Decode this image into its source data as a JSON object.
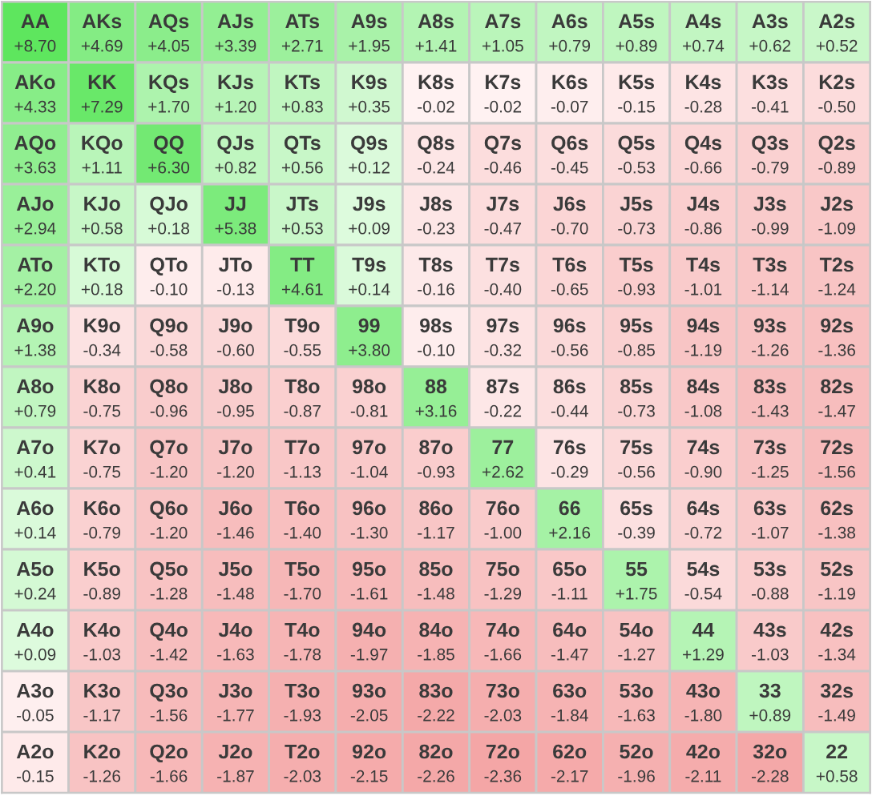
{
  "chart_data": {
    "type": "heatmap",
    "categories": [
      null,
      null,
      null,
      null,
      null,
      null,
      null,
      null,
      null,
      null,
      null,
      null,
      null
    ],
    "y_categories": [
      null,
      null,
      null,
      null,
      null,
      null,
      null,
      null,
      null,
      null,
      null,
      null,
      null
    ],
    "cells": [
      [
        8.7,
        4.69,
        4.05,
        3.39,
        2.71,
        1.95,
        1.41,
        1.05,
        0.79,
        0.89,
        0.74,
        0.62,
        0.52
      ],
      [
        4.33,
        7.29,
        1.7,
        1.2,
        0.83,
        0.35,
        -0.02,
        -0.02,
        -0.07,
        -0.15,
        -0.28,
        -0.41,
        -0.5
      ],
      [
        3.63,
        1.11,
        6.3,
        0.82,
        0.56,
        0.12,
        -0.24,
        -0.46,
        -0.45,
        -0.53,
        -0.66,
        -0.79,
        -0.89
      ],
      [
        2.94,
        0.58,
        0.18,
        5.38,
        0.53,
        0.09,
        -0.23,
        -0.47,
        -0.7,
        -0.73,
        -0.86,
        -0.99,
        -1.09
      ],
      [
        2.2,
        0.18,
        -0.1,
        -0.13,
        4.61,
        0.14,
        -0.16,
        -0.4,
        -0.65,
        -0.93,
        -1.01,
        -1.14,
        -1.24
      ],
      [
        1.38,
        -0.34,
        -0.58,
        -0.6,
        -0.55,
        3.8,
        -0.1,
        -0.32,
        -0.56,
        -0.85,
        -1.19,
        -1.26,
        -1.36
      ],
      [
        0.79,
        -0.75,
        -0.96,
        -0.95,
        -0.87,
        -0.81,
        3.16,
        -0.22,
        -0.44,
        -0.73,
        -1.08,
        -1.43,
        -1.47
      ],
      [
        0.41,
        -0.75,
        -1.2,
        -1.2,
        -1.13,
        -1.04,
        -0.93,
        2.62,
        -0.29,
        -0.56,
        -0.9,
        -1.25,
        -1.56
      ],
      [
        0.14,
        -0.79,
        -1.2,
        -1.46,
        -1.4,
        -1.3,
        -1.17,
        -1.0,
        2.16,
        -0.39,
        -0.72,
        -1.07,
        -1.38
      ],
      [
        0.24,
        -0.89,
        -1.28,
        -1.48,
        -1.7,
        -1.61,
        -1.48,
        -1.29,
        -1.11,
        1.75,
        -0.54,
        -0.88,
        -1.19
      ],
      [
        0.09,
        -1.03,
        -1.42,
        -1.63,
        -1.78,
        -1.97,
        -1.85,
        -1.66,
        -1.47,
        -1.27,
        1.29,
        -1.03,
        -1.34
      ],
      [
        -0.05,
        -1.17,
        -1.56,
        -1.77,
        -1.93,
        -2.05,
        -2.22,
        -2.03,
        -1.84,
        -1.63,
        -1.8,
        0.89,
        -1.49
      ],
      [
        -0.15,
        -1.26,
        -1.66,
        -1.87,
        -2.03,
        -2.15,
        -2.26,
        -2.36,
        -2.17,
        -1.96,
        -2.11,
        -2.28,
        0.58
      ]
    ],
    "cell_labels": [
      [
        "+8.70",
        "+4.69",
        "+4.05",
        "+3.39",
        "+2.71",
        "+1.95",
        "+1.41",
        "+1.05",
        "+0.79",
        "+0.89",
        "+0.74",
        "+0.62",
        "+0.52"
      ],
      [
        "+4.33",
        "+7.29",
        "+1.70",
        "+1.20",
        "+0.83",
        "+0.35",
        "-0.02",
        "-0.02",
        "-0.07",
        "-0.15",
        "-0.28",
        "-0.41",
        "-0.50"
      ],
      [
        "+3.63",
        "+1.11",
        "+6.30",
        "+0.82",
        "+0.56",
        "+0.12",
        "-0.24",
        "-0.46",
        "-0.45",
        "-0.53",
        "-0.66",
        "-0.79",
        "-0.89"
      ],
      [
        "+2.94",
        "+0.58",
        "+0.18",
        "+5.38",
        "+0.53",
        "+0.09",
        "-0.23",
        "-0.47",
        "-0.70",
        "-0.73",
        "-0.86",
        "-0.99",
        "-1.09"
      ],
      [
        "+2.20",
        "+0.18",
        "-0.10",
        "-0.13",
        "+4.61",
        "+0.14",
        "-0.16",
        "-0.40",
        "-0.65",
        "-0.93",
        "-1.01",
        "-1.14",
        "-1.24"
      ],
      [
        "+1.38",
        "-0.34",
        "-0.58",
        "-0.60",
        "-0.55",
        "+3.80",
        "-0.10",
        "-0.32",
        "-0.56",
        "-0.85",
        "-1.19",
        "-1.26",
        "-1.36"
      ],
      [
        "+0.79",
        "-0.75",
        "-0.96",
        "-0.95",
        "-0.87",
        "-0.81",
        "+3.16",
        "-0.22",
        "-0.44",
        "-0.73",
        "-1.08",
        "-1.43",
        "-1.47"
      ],
      [
        "+0.41",
        "-0.75",
        "-1.20",
        "-1.20",
        "-1.13",
        "-1.04",
        "-0.93",
        "+2.62",
        "-0.29",
        "-0.56",
        "-0.90",
        "-1.25",
        "-1.56"
      ],
      [
        "+0.14",
        "-0.79",
        "-1.20",
        "-1.46",
        "-1.40",
        "-1.30",
        "-1.17",
        "-1.00",
        "+2.16",
        "-0.39",
        "-0.72",
        "-1.07",
        "-1.38"
      ],
      [
        "+0.24",
        "-0.89",
        "-1.28",
        "-1.48",
        "-1.70",
        "-1.61",
        "-1.48",
        "-1.29",
        "-1.11",
        "+1.75",
        "-0.54",
        "-0.88",
        "-1.19"
      ],
      [
        "+0.09",
        "-1.03",
        "-1.42",
        "-1.63",
        "-1.78",
        "-1.97",
        "-1.85",
        "-1.66",
        "-1.47",
        "-1.27",
        "+1.29",
        "-1.03",
        "-1.34"
      ],
      [
        "-0.05",
        "-1.17",
        "-1.56",
        "-1.77",
        "-1.93",
        "-2.05",
        "-2.22",
        "-2.03",
        "-1.84",
        "-1.63",
        "-1.80",
        "+0.89",
        "-1.49"
      ],
      [
        "-0.15",
        "-1.26",
        "-1.66",
        "-1.87",
        "-2.03",
        "-2.15",
        "-2.26",
        "-2.36",
        "-2.17",
        "-1.96",
        "-2.11",
        "-2.28",
        "+0.58"
      ]
    ],
    "annotations": [
      "AA",
      "AKs",
      "AQs",
      "AJs",
      "ATs",
      "A9s",
      "A8s",
      "A7s",
      "A6s",
      "A5s",
      "A4s",
      "A3s",
      "A2s",
      "AKo",
      "KK",
      "KQs",
      "KJs",
      "KTs",
      "K9s",
      "K8s",
      "K7s",
      "K6s",
      "K5s",
      "K4s",
      "K3s",
      "K2s",
      "AQo",
      "KQo",
      "QQ",
      "QJs",
      "QTs",
      "Q9s",
      "Q8s",
      "Q7s",
      "Q6s",
      "Q5s",
      "Q4s",
      "Q3s",
      "Q2s",
      "AJo",
      "KJo",
      "QJo",
      "JJ",
      "JTs",
      "J9s",
      "J8s",
      "J7s",
      "J6s",
      "J5s",
      "J4s",
      "J3s",
      "J2s",
      "ATo",
      "KTo",
      "QTo",
      "JTo",
      "TT",
      "T9s",
      "T8s",
      "T7s",
      "T6s",
      "T5s",
      "T4s",
      "T3s",
      "T2s",
      "A9o",
      "K9o",
      "Q9o",
      "J9o",
      "T9o",
      "99",
      "98s",
      "97s",
      "96s",
      "95s",
      "94s",
      "93s",
      "92s",
      "A8o",
      "K8o",
      "Q8o",
      "J8o",
      "T8o",
      "98o",
      "88",
      "87s",
      "86s",
      "85s",
      "84s",
      "83s",
      "82s",
      "A7o",
      "K7o",
      "Q7o",
      "J7o",
      "T7o",
      "97o",
      "87o",
      "77",
      "76s",
      "75s",
      "74s",
      "73s",
      "72s",
      "A6o",
      "K6o",
      "Q6o",
      "J6o",
      "T6o",
      "96o",
      "86o",
      "76o",
      "66",
      "65s",
      "64s",
      "63s",
      "62s",
      "A5o",
      "K5o",
      "Q5o",
      "J5o",
      "T5o",
      "95o",
      "85o",
      "75o",
      "65o",
      "55",
      "54s",
      "53s",
      "52s",
      "A4o",
      "K4o",
      "Q4o",
      "J4o",
      "T4o",
      "94o",
      "84o",
      "74o",
      "64o",
      "54o",
      "44",
      "43s",
      "42s",
      "A3o",
      "K3o",
      "Q3o",
      "J3o",
      "T3o",
      "93o",
      "83o",
      "73o",
      "63o",
      "53o",
      "43o",
      "33",
      "32s",
      "A2o",
      "K2o",
      "Q2o",
      "J2o",
      "T2o",
      "92o",
      "82o",
      "72o",
      "62o",
      "52o",
      "42o",
      "32o",
      "22"
    ]
  }
}
